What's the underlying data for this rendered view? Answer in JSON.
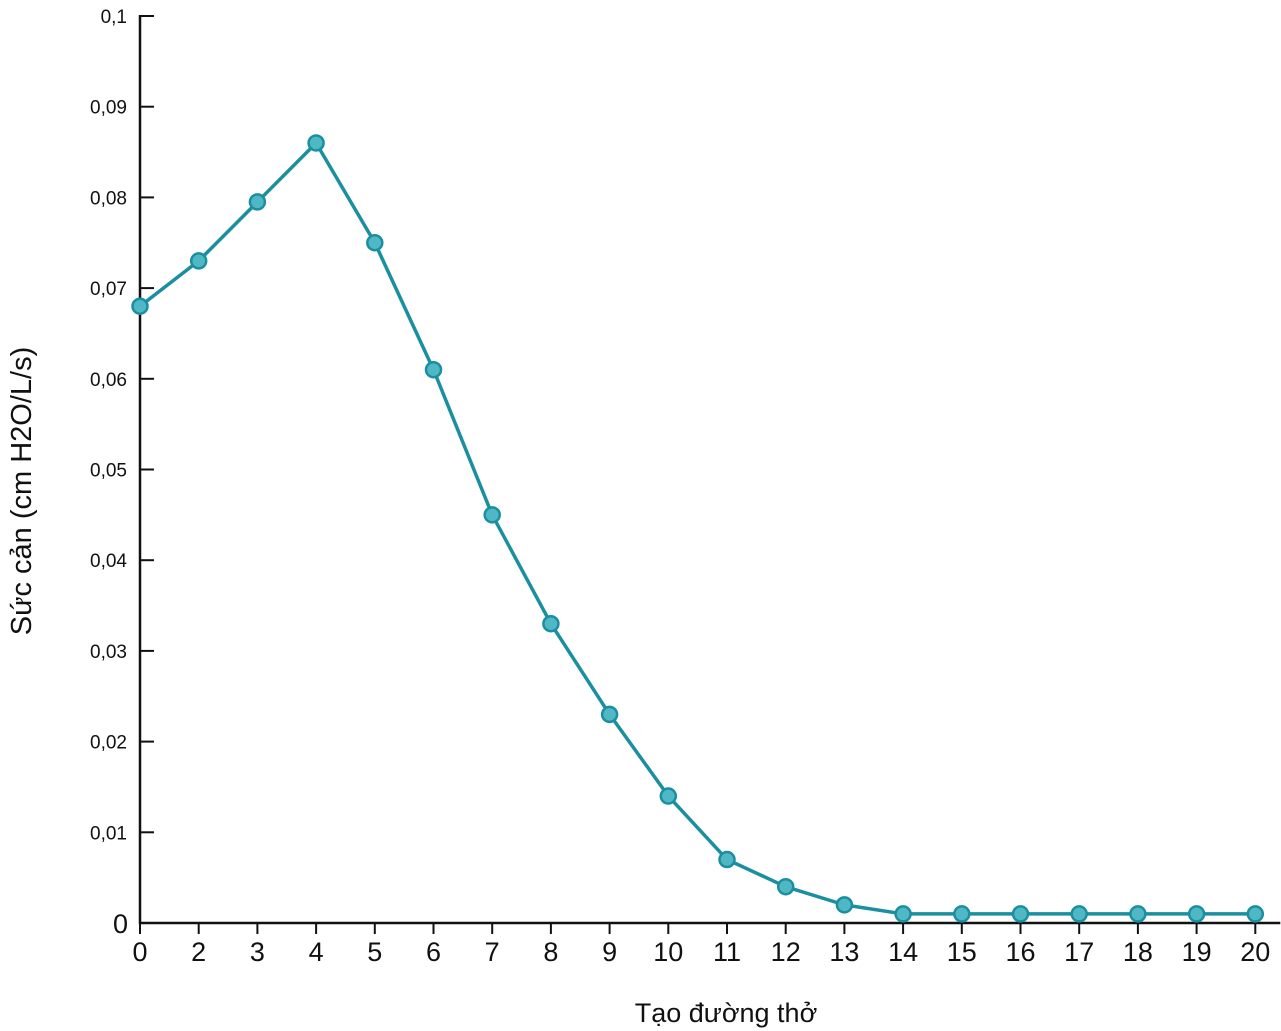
{
  "chart_data": {
    "type": "line",
    "title": "",
    "xlabel": "Tạo đường thở",
    "ylabel": "Sức cản (cm H2O/L/s)",
    "x": [
      "0",
      "2",
      "3",
      "4",
      "5",
      "6",
      "7",
      "8",
      "9",
      "10",
      "11",
      "12",
      "13",
      "14",
      "15",
      "16",
      "17",
      "18",
      "19",
      "20"
    ],
    "y_ticks": [
      "0",
      "0,01",
      "0,02",
      "0,03",
      "0,04",
      "0,05",
      "0,06",
      "0,07",
      "0,08",
      "0,09",
      "0,1"
    ],
    "y_tick_values": [
      0,
      0.01,
      0.02,
      0.03,
      0.04,
      0.05,
      0.06,
      0.07,
      0.08,
      0.09,
      0.1
    ],
    "ylim": [
      0,
      0.1
    ],
    "series": [
      {
        "values": [
          0.068,
          0.073,
          0.0795,
          0.086,
          0.075,
          0.061,
          0.045,
          0.033,
          0.023,
          0.014,
          0.007,
          0.004,
          0.002,
          0.001,
          0.001,
          0.001,
          0.001,
          0.001,
          0.001,
          0.001
        ]
      }
    ],
    "grid": false,
    "legend": "none",
    "colors": {
      "line": "#1a8fa0",
      "marker_fill": "#4fb8c4",
      "marker_stroke": "#1a8fa0",
      "axis": "#111111"
    }
  }
}
